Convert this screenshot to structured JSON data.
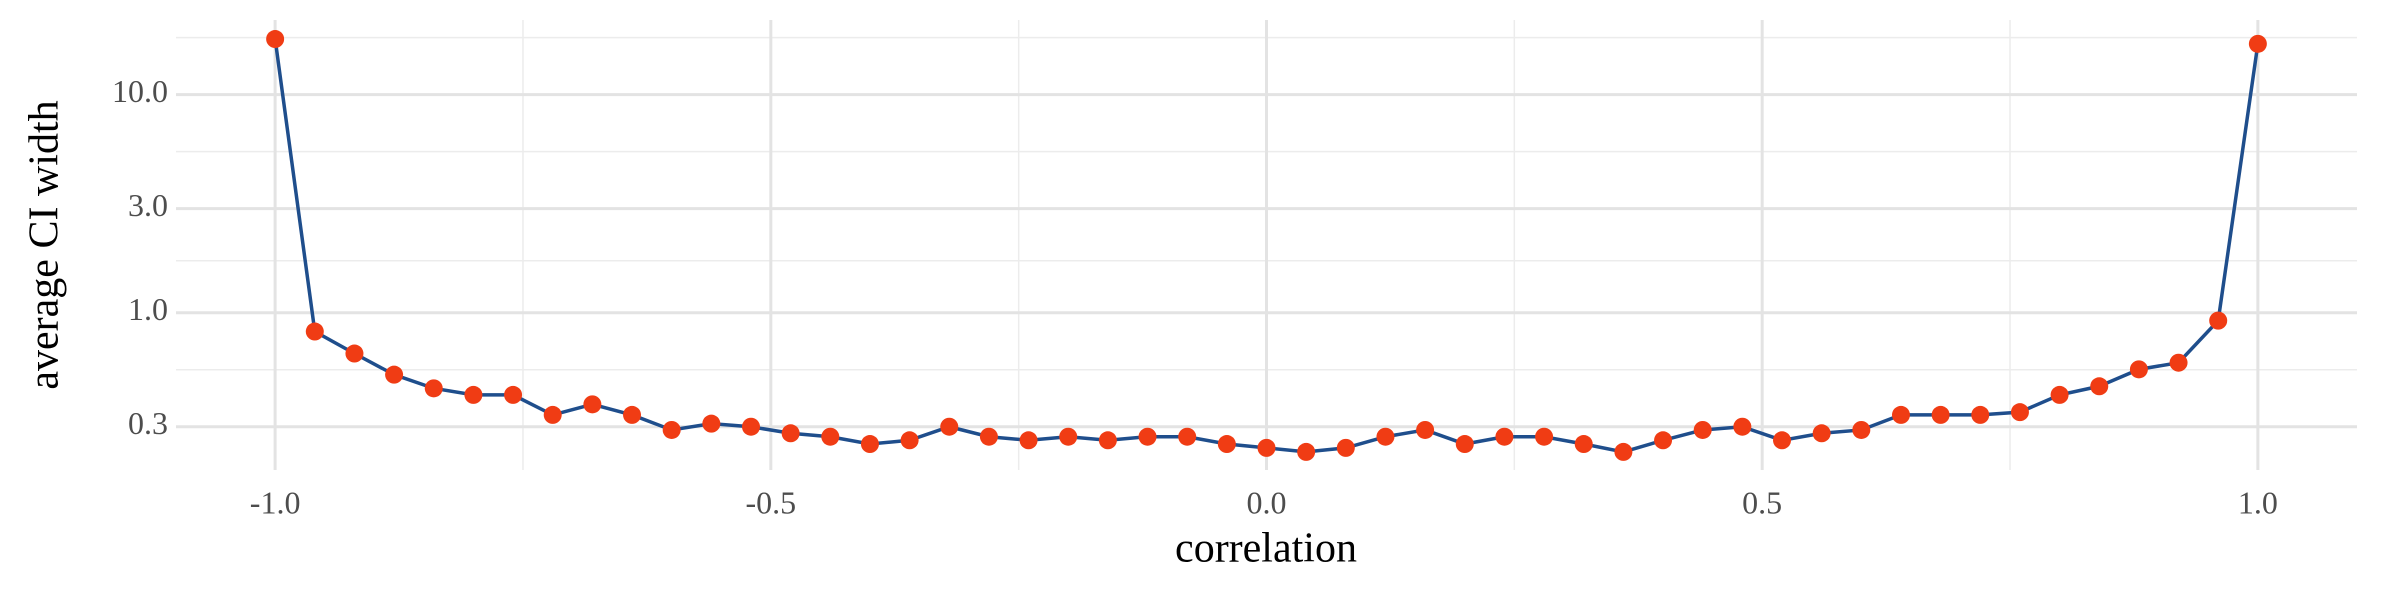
{
  "chart_data": {
    "type": "line",
    "xlabel": "correlation",
    "ylabel": "average CI width",
    "x": [
      -1,
      -0.96,
      -0.92,
      -0.88,
      -0.84,
      -0.8,
      -0.76,
      -0.72,
      -0.68,
      -0.64,
      -0.6,
      -0.56,
      -0.52,
      -0.48,
      -0.44,
      -0.4,
      -0.36,
      -0.32,
      -0.28,
      -0.24,
      -0.2,
      -0.16,
      -0.12,
      -0.08,
      -0.04,
      0,
      0.04,
      0.08,
      0.12,
      0.16,
      0.2,
      0.24,
      0.28,
      0.32,
      0.36,
      0.4,
      0.44,
      0.48,
      0.52,
      0.56,
      0.6,
      0.64,
      0.68,
      0.72,
      0.76,
      0.8,
      0.84,
      0.88,
      0.92,
      0.96,
      1
    ],
    "series": [
      {
        "line_color": "#1f4e8c",
        "color": "#f03c14",
        "values": [
          18.0,
          0.82,
          0.65,
          0.52,
          0.45,
          0.42,
          0.42,
          0.34,
          0.38,
          0.34,
          0.29,
          0.31,
          0.3,
          0.28,
          0.27,
          0.25,
          0.26,
          0.3,
          0.27,
          0.26,
          0.27,
          0.26,
          0.27,
          0.27,
          0.25,
          0.24,
          0.23,
          0.24,
          0.27,
          0.29,
          0.25,
          0.27,
          0.27,
          0.25,
          0.23,
          0.26,
          0.29,
          0.3,
          0.26,
          0.28,
          0.29,
          0.34,
          0.34,
          0.34,
          0.35,
          0.42,
          0.46,
          0.55,
          0.59,
          0.92,
          17.1
        ]
      }
    ],
    "xlim": [
      -1.1,
      1.1
    ],
    "xticks": [
      {
        "value": -1,
        "label": "-1.0"
      },
      {
        "value": -0.5,
        "label": "-0.5"
      },
      {
        "value": 0,
        "label": "0.0"
      },
      {
        "value": 0.5,
        "label": "0.5"
      },
      {
        "value": 1,
        "label": "1.0"
      }
    ],
    "ylim": [
      0.19,
      22
    ],
    "ylog": true,
    "yticks": [
      0.3,
      {
        "value": 1,
        "label": "1.0"
      },
      {
        "value": 3,
        "label": "3.0"
      },
      {
        "value": 10,
        "label": "10.0"
      }
    ],
    "grid": true,
    "minor_grid": true
  }
}
